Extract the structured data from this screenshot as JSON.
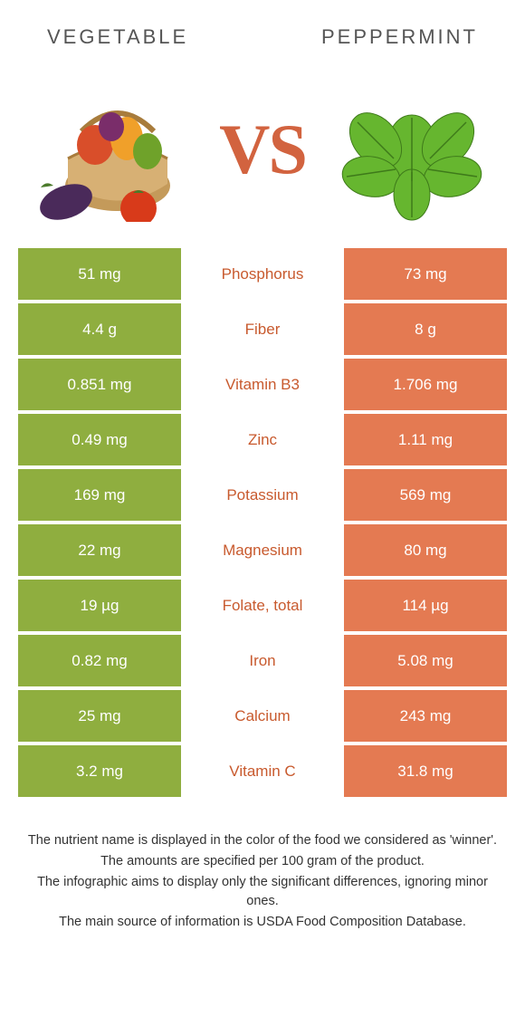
{
  "header": {
    "left_title": "Vegetable",
    "right_title": "Peppermint"
  },
  "vs_label": "VS",
  "colors": {
    "left_bg": "#8fae3f",
    "right_bg": "#e47a52",
    "nutrient_orange": "#c85a2e",
    "nutrient_green": "#6a8a1f"
  },
  "rows": [
    {
      "left": "51 mg",
      "nutrient": "Phosphorus",
      "right": "73 mg",
      "winner": "right"
    },
    {
      "left": "4.4 g",
      "nutrient": "Fiber",
      "right": "8 g",
      "winner": "right"
    },
    {
      "left": "0.851 mg",
      "nutrient": "Vitamin B3",
      "right": "1.706 mg",
      "winner": "right"
    },
    {
      "left": "0.49 mg",
      "nutrient": "Zinc",
      "right": "1.11 mg",
      "winner": "right"
    },
    {
      "left": "169 mg",
      "nutrient": "Potassium",
      "right": "569 mg",
      "winner": "right"
    },
    {
      "left": "22 mg",
      "nutrient": "Magnesium",
      "right": "80 mg",
      "winner": "right"
    },
    {
      "left": "19 µg",
      "nutrient": "Folate, total",
      "right": "114 µg",
      "winner": "right"
    },
    {
      "left": "0.82 mg",
      "nutrient": "Iron",
      "right": "5.08 mg",
      "winner": "right"
    },
    {
      "left": "25 mg",
      "nutrient": "Calcium",
      "right": "243 mg",
      "winner": "right"
    },
    {
      "left": "3.2 mg",
      "nutrient": "Vitamin C",
      "right": "31.8 mg",
      "winner": "right"
    }
  ],
  "footer": {
    "line1": "The nutrient name is displayed in the color of the food we considered as 'winner'.",
    "line2": "The amounts are specified per 100 gram of the product.",
    "line3": "The infographic aims to display only the significant differences, ignoring minor ones.",
    "line4": "The main source of information is USDA Food Composition Database."
  }
}
